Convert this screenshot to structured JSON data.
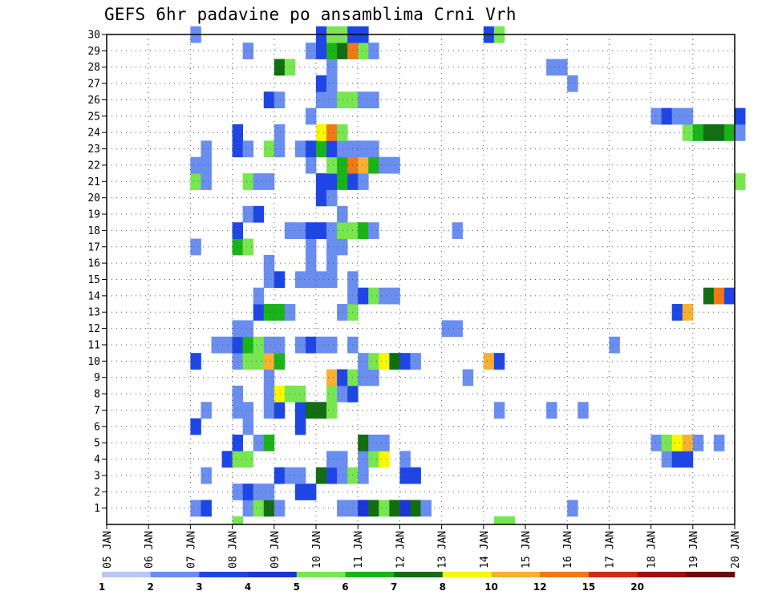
{
  "chart_data": {
    "type": "heatmap",
    "title": "GEFS 6hr padavine po ansamblima Crni Vrh",
    "xlabel": "",
    "ylabel": "",
    "x_tick_labels": [
      "05 JAN",
      "06 JAN",
      "07 JAN",
      "08 JAN",
      "09 JAN",
      "10 JAN",
      "11 JAN",
      "12 JAN",
      "13 JAN",
      "14 JAN",
      "15 JAN",
      "16 JAN",
      "17 JAN",
      "18 JAN",
      "19 JAN",
      "20 JAN"
    ],
    "x_range_days": [
      5,
      20
    ],
    "y_tick_labels": [
      "1",
      "2",
      "3",
      "4",
      "5",
      "6",
      "7",
      "8",
      "9",
      "10",
      "11",
      "12",
      "13",
      "14",
      "15",
      "16",
      "17",
      "18",
      "19",
      "20",
      "21",
      "22",
      "23",
      "24",
      "25",
      "26",
      "27",
      "28",
      "29",
      "30"
    ],
    "ylim": [
      0,
      30
    ],
    "grid": true,
    "time_step_hours": 6,
    "legend": {
      "placement": "bottom",
      "labels": [
        "1",
        "2",
        "3",
        "4",
        "5",
        "6",
        "7",
        "8",
        "10",
        "12",
        "15",
        "20"
      ],
      "colors": [
        "#b8c8f8",
        "#6a8ef0",
        "#1e46e6",
        "#1a36d6",
        "#78e650",
        "#18b418",
        "#126e12",
        "#f8f800",
        "#f8b030",
        "#f07818",
        "#d02a10",
        "#a01010",
        "#6e0a08"
      ]
    },
    "cells": [
      [
        1,
        7.0,
        1
      ],
      [
        1,
        7.25,
        2
      ],
      [
        1,
        8.25,
        1
      ],
      [
        1,
        8.5,
        4
      ],
      [
        1,
        8.75,
        6
      ],
      [
        1,
        9.0,
        1
      ],
      [
        1,
        10.5,
        1
      ],
      [
        1,
        10.75,
        1
      ],
      [
        1,
        11.0,
        3
      ],
      [
        1,
        11.25,
        6
      ],
      [
        1,
        11.5,
        4
      ],
      [
        1,
        11.75,
        6
      ],
      [
        1,
        12.0,
        3
      ],
      [
        1,
        12.25,
        6
      ],
      [
        1,
        12.5,
        1
      ],
      [
        1,
        16.0,
        1
      ],
      [
        2,
        8.0,
        1
      ],
      [
        2,
        8.25,
        2
      ],
      [
        2,
        8.5,
        1
      ],
      [
        2,
        8.75,
        1
      ],
      [
        2,
        9.5,
        2
      ],
      [
        2,
        9.75,
        2
      ],
      [
        3,
        7.25,
        1
      ],
      [
        3,
        9.0,
        2
      ],
      [
        3,
        9.25,
        1
      ],
      [
        3,
        9.5,
        1
      ],
      [
        3,
        10.0,
        6
      ],
      [
        3,
        10.25,
        2
      ],
      [
        3,
        10.5,
        1
      ],
      [
        3,
        10.75,
        4
      ],
      [
        3,
        11.0,
        1
      ],
      [
        3,
        12.0,
        2
      ],
      [
        3,
        12.25,
        2
      ],
      [
        4,
        7.75,
        2
      ],
      [
        4,
        8.0,
        4
      ],
      [
        4,
        8.25,
        4
      ],
      [
        4,
        10.25,
        1
      ],
      [
        4,
        10.5,
        1
      ],
      [
        4,
        11.0,
        1
      ],
      [
        4,
        11.25,
        4
      ],
      [
        4,
        11.5,
        7
      ],
      [
        4,
        12.0,
        1
      ],
      [
        4,
        18.25,
        1
      ],
      [
        4,
        18.5,
        2
      ],
      [
        4,
        18.75,
        2
      ],
      [
        5,
        8.0,
        2
      ],
      [
        5,
        8.5,
        1
      ],
      [
        5,
        8.75,
        5
      ],
      [
        5,
        11.0,
        6
      ],
      [
        5,
        11.25,
        1
      ],
      [
        5,
        11.5,
        1
      ],
      [
        5,
        18.0,
        1
      ],
      [
        5,
        18.25,
        4
      ],
      [
        5,
        18.5,
        7
      ],
      [
        5,
        18.75,
        8
      ],
      [
        5,
        19.0,
        1
      ],
      [
        5,
        19.5,
        1
      ],
      [
        6,
        7.0,
        2
      ],
      [
        6,
        8.25,
        1
      ],
      [
        6,
        9.5,
        2
      ],
      [
        7,
        7.25,
        1
      ],
      [
        7,
        8.0,
        1
      ],
      [
        7,
        8.25,
        1
      ],
      [
        7,
        8.75,
        1
      ],
      [
        7,
        9.0,
        2
      ],
      [
        7,
        9.5,
        2
      ],
      [
        7,
        9.75,
        6
      ],
      [
        7,
        10.0,
        6
      ],
      [
        7,
        10.25,
        4
      ],
      [
        7,
        14.25,
        1
      ],
      [
        7,
        15.5,
        1
      ],
      [
        7,
        16.25,
        1
      ],
      [
        8,
        8.0,
        1
      ],
      [
        8,
        8.75,
        1
      ],
      [
        8,
        9.0,
        7
      ],
      [
        8,
        9.25,
        4
      ],
      [
        8,
        9.5,
        4
      ],
      [
        8,
        10.25,
        4
      ],
      [
        8,
        10.5,
        1
      ],
      [
        8,
        10.75,
        2
      ],
      [
        9,
        8.75,
        1
      ],
      [
        9,
        10.25,
        8
      ],
      [
        9,
        10.5,
        2
      ],
      [
        9,
        10.75,
        4
      ],
      [
        9,
        11.0,
        1
      ],
      [
        9,
        11.25,
        1
      ],
      [
        9,
        13.5,
        1
      ],
      [
        10,
        7.0,
        2
      ],
      [
        10,
        8.0,
        1
      ],
      [
        10,
        8.25,
        4
      ],
      [
        10,
        8.5,
        4
      ],
      [
        10,
        8.75,
        8
      ],
      [
        10,
        9.0,
        5
      ],
      [
        10,
        11.0,
        1
      ],
      [
        10,
        11.25,
        4
      ],
      [
        10,
        11.5,
        7
      ],
      [
        10,
        11.75,
        6
      ],
      [
        10,
        12.0,
        2
      ],
      [
        10,
        12.25,
        1
      ],
      [
        10,
        14.0,
        8
      ],
      [
        10,
        14.25,
        2
      ],
      [
        11,
        7.5,
        1
      ],
      [
        11,
        7.75,
        1
      ],
      [
        11,
        8.0,
        2
      ],
      [
        11,
        8.25,
        5
      ],
      [
        11,
        8.5,
        4
      ],
      [
        11,
        8.75,
        1
      ],
      [
        11,
        9.0,
        1
      ],
      [
        11,
        9.5,
        1
      ],
      [
        11,
        9.75,
        2
      ],
      [
        11,
        10.0,
        1
      ],
      [
        11,
        10.25,
        1
      ],
      [
        11,
        10.75,
        1
      ],
      [
        11,
        17.0,
        1
      ],
      [
        12,
        8.0,
        1
      ],
      [
        12,
        8.25,
        1
      ],
      [
        12,
        13.0,
        1
      ],
      [
        12,
        13.25,
        1
      ],
      [
        13,
        8.5,
        2
      ],
      [
        13,
        8.75,
        5
      ],
      [
        13,
        9.0,
        5
      ],
      [
        13,
        9.25,
        1
      ],
      [
        13,
        10.5,
        1
      ],
      [
        13,
        10.75,
        4
      ],
      [
        13,
        18.5,
        2
      ],
      [
        13,
        18.75,
        8
      ],
      [
        14,
        8.5,
        1
      ],
      [
        14,
        10.75,
        1
      ],
      [
        14,
        11.0,
        2
      ],
      [
        14,
        11.25,
        4
      ],
      [
        14,
        11.5,
        1
      ],
      [
        14,
        11.75,
        1
      ],
      [
        14,
        19.25,
        6
      ],
      [
        14,
        19.5,
        9
      ],
      [
        14,
        19.75,
        2
      ],
      [
        15,
        8.75,
        1
      ],
      [
        15,
        9.0,
        2
      ],
      [
        15,
        9.5,
        1
      ],
      [
        15,
        9.75,
        1
      ],
      [
        15,
        10.0,
        1
      ],
      [
        15,
        10.25,
        1
      ],
      [
        15,
        10.75,
        1
      ],
      [
        16,
        8.75,
        1
      ],
      [
        16,
        9.75,
        1
      ],
      [
        16,
        10.25,
        1
      ],
      [
        17,
        7.0,
        1
      ],
      [
        17,
        8.0,
        5
      ],
      [
        17,
        8.25,
        4
      ],
      [
        17,
        9.75,
        1
      ],
      [
        17,
        10.25,
        1
      ],
      [
        17,
        10.5,
        1
      ],
      [
        18,
        8.0,
        2
      ],
      [
        18,
        9.25,
        1
      ],
      [
        18,
        9.5,
        1
      ],
      [
        18,
        9.75,
        2
      ],
      [
        18,
        10.0,
        2
      ],
      [
        18,
        10.25,
        1
      ],
      [
        18,
        10.5,
        4
      ],
      [
        18,
        10.75,
        4
      ],
      [
        18,
        11.0,
        5
      ],
      [
        18,
        11.25,
        1
      ],
      [
        18,
        13.25,
        1
      ],
      [
        19,
        8.25,
        1
      ],
      [
        19,
        8.5,
        2
      ],
      [
        19,
        10.5,
        1
      ],
      [
        20,
        10.0,
        2
      ],
      [
        20,
        10.25,
        1
      ],
      [
        21,
        7.0,
        4
      ],
      [
        21,
        7.25,
        1
      ],
      [
        21,
        8.25,
        4
      ],
      [
        21,
        8.5,
        1
      ],
      [
        21,
        8.75,
        1
      ],
      [
        21,
        10.0,
        2
      ],
      [
        21,
        10.25,
        2
      ],
      [
        21,
        10.5,
        5
      ],
      [
        21,
        10.75,
        2
      ],
      [
        21,
        11.0,
        1
      ],
      [
        21,
        20.0,
        4
      ],
      [
        22,
        7.0,
        1
      ],
      [
        22,
        7.25,
        1
      ],
      [
        22,
        9.75,
        1
      ],
      [
        22,
        10.25,
        4
      ],
      [
        22,
        10.5,
        5
      ],
      [
        22,
        10.75,
        9
      ],
      [
        22,
        11.0,
        8
      ],
      [
        22,
        11.25,
        5
      ],
      [
        22,
        11.5,
        1
      ],
      [
        22,
        11.75,
        1
      ],
      [
        23,
        7.25,
        1
      ],
      [
        23,
        8.0,
        2
      ],
      [
        23,
        8.25,
        1
      ],
      [
        23,
        8.75,
        4
      ],
      [
        23,
        9.0,
        1
      ],
      [
        23,
        9.5,
        1
      ],
      [
        23,
        9.75,
        2
      ],
      [
        23,
        10.0,
        5
      ],
      [
        23,
        10.25,
        2
      ],
      [
        23,
        10.5,
        1
      ],
      [
        23,
        10.75,
        1
      ],
      [
        23,
        11.0,
        1
      ],
      [
        23,
        11.25,
        1
      ],
      [
        24,
        8.0,
        2
      ],
      [
        24,
        9.0,
        1
      ],
      [
        24,
        10.0,
        7
      ],
      [
        24,
        10.25,
        9
      ],
      [
        24,
        10.5,
        4
      ],
      [
        24,
        18.75,
        4
      ],
      [
        24,
        19.0,
        5
      ],
      [
        24,
        19.25,
        6
      ],
      [
        24,
        19.5,
        6
      ],
      [
        24,
        19.75,
        5
      ],
      [
        24,
        20.0,
        1
      ],
      [
        25,
        9.75,
        1
      ],
      [
        25,
        18.0,
        1
      ],
      [
        25,
        18.25,
        2
      ],
      [
        25,
        18.5,
        1
      ],
      [
        25,
        18.75,
        1
      ],
      [
        25,
        20.0,
        2
      ],
      [
        26,
        8.75,
        2
      ],
      [
        26,
        9.0,
        1
      ],
      [
        26,
        10.0,
        1
      ],
      [
        26,
        10.25,
        1
      ],
      [
        26,
        10.5,
        4
      ],
      [
        26,
        10.75,
        4
      ],
      [
        26,
        11.0,
        1
      ],
      [
        26,
        11.25,
        1
      ],
      [
        27,
        10.0,
        2
      ],
      [
        27,
        10.25,
        1
      ],
      [
        27,
        16.0,
        1
      ],
      [
        28,
        9.0,
        6
      ],
      [
        28,
        9.25,
        4
      ],
      [
        28,
        10.25,
        1
      ],
      [
        28,
        15.5,
        1
      ],
      [
        28,
        15.75,
        1
      ],
      [
        29,
        8.25,
        1
      ],
      [
        29,
        9.75,
        1
      ],
      [
        29,
        10.0,
        2
      ],
      [
        29,
        10.25,
        5
      ],
      [
        29,
        10.5,
        6
      ],
      [
        29,
        10.75,
        9
      ],
      [
        29,
        11.0,
        4
      ],
      [
        29,
        11.25,
        1
      ],
      [
        30,
        7.0,
        1
      ],
      [
        30,
        10.0,
        2
      ],
      [
        30,
        10.25,
        4
      ],
      [
        30,
        10.5,
        4
      ],
      [
        30,
        10.75,
        2
      ],
      [
        30,
        11.0,
        2
      ],
      [
        30,
        14.0,
        2
      ],
      [
        30,
        14.25,
        4
      ]
    ],
    "extra_cells_row0": [
      [
        8.0,
        4
      ],
      [
        14.25,
        4
      ],
      [
        14.5,
        4
      ]
    ]
  }
}
